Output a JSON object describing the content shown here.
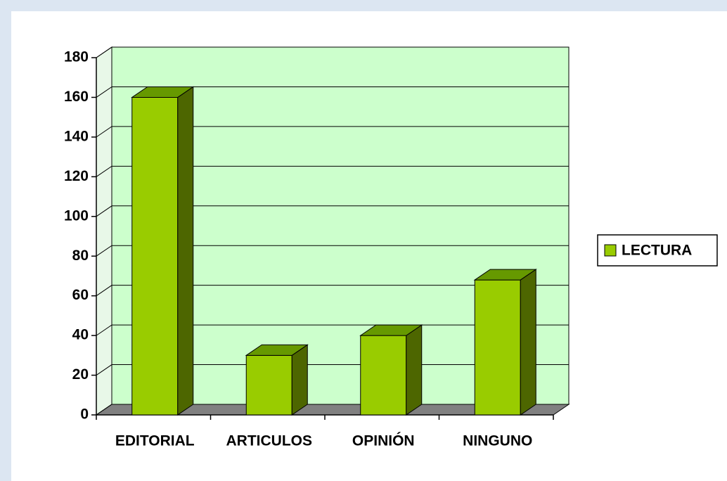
{
  "chart_data": {
    "type": "bar3d",
    "categories": [
      "EDITORIAL",
      "ARTICULOS",
      "OPINIÓN",
      "NINGUNO"
    ],
    "series": [
      {
        "name": "LECTURA",
        "color": "#99cc00",
        "values": [
          160,
          30,
          40,
          68
        ]
      }
    ],
    "ylim": [
      0,
      180
    ],
    "yticks": [
      0,
      20,
      40,
      60,
      80,
      100,
      120,
      140,
      160,
      180
    ],
    "grid": true,
    "legend": "right"
  }
}
